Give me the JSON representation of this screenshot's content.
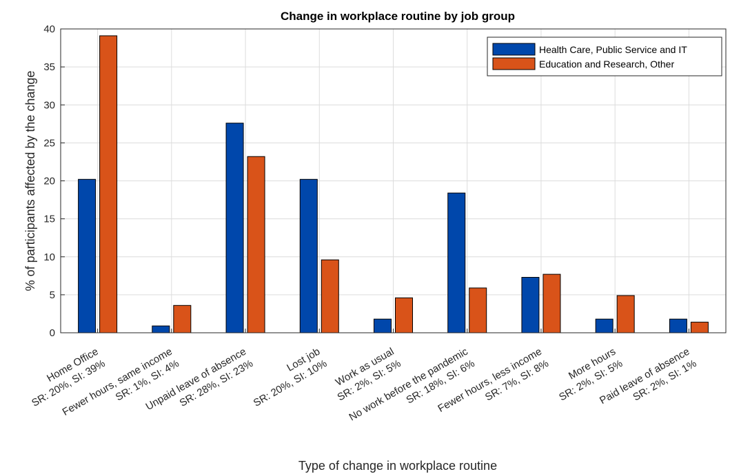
{
  "chart_data": {
    "type": "bar",
    "title": "Change in workplace routine by job group",
    "xlabel": "Type of change in workplace routine",
    "ylabel": "% of participants affected by the change",
    "ylim": [
      0,
      40
    ],
    "yticks": [
      0,
      5,
      10,
      15,
      20,
      25,
      30,
      35,
      40
    ],
    "grid": true,
    "legend_position": "top-right",
    "categories": [
      {
        "line1": "Home Office",
        "line2": "SR: 20%, SI: 39%"
      },
      {
        "line1": "Fewer hours, same income",
        "line2": "SR: 1%, SI: 4%"
      },
      {
        "line1": "Unpaid leave of absence",
        "line2": "SR: 28%, SI: 23%"
      },
      {
        "line1": "Lost job",
        "line2": "SR: 20%, SI: 10%"
      },
      {
        "line1": "Work as usual",
        "line2": "SR: 2%, SI: 5%"
      },
      {
        "line1": "No work before the pandemic",
        "line2": "SR: 18%, SI: 6%"
      },
      {
        "line1": "Fewer hours, less income",
        "line2": "SR: 7%, SI: 8%"
      },
      {
        "line1": "More hours",
        "line2": "SR: 2%, SI: 5%"
      },
      {
        "line1": "Paid leave of absence",
        "line2": "SR: 2%, SI: 1%"
      }
    ],
    "series": [
      {
        "name": "Health Care, Public Service and IT",
        "color": "#0047AB",
        "values": [
          20.2,
          0.9,
          27.6,
          20.2,
          1.8,
          18.4,
          7.3,
          1.8,
          1.8
        ]
      },
      {
        "name": "Education and Research, Other",
        "color": "#D95319",
        "values": [
          39.1,
          3.6,
          23.2,
          9.6,
          4.6,
          5.9,
          7.7,
          4.9,
          1.4
        ]
      }
    ]
  }
}
